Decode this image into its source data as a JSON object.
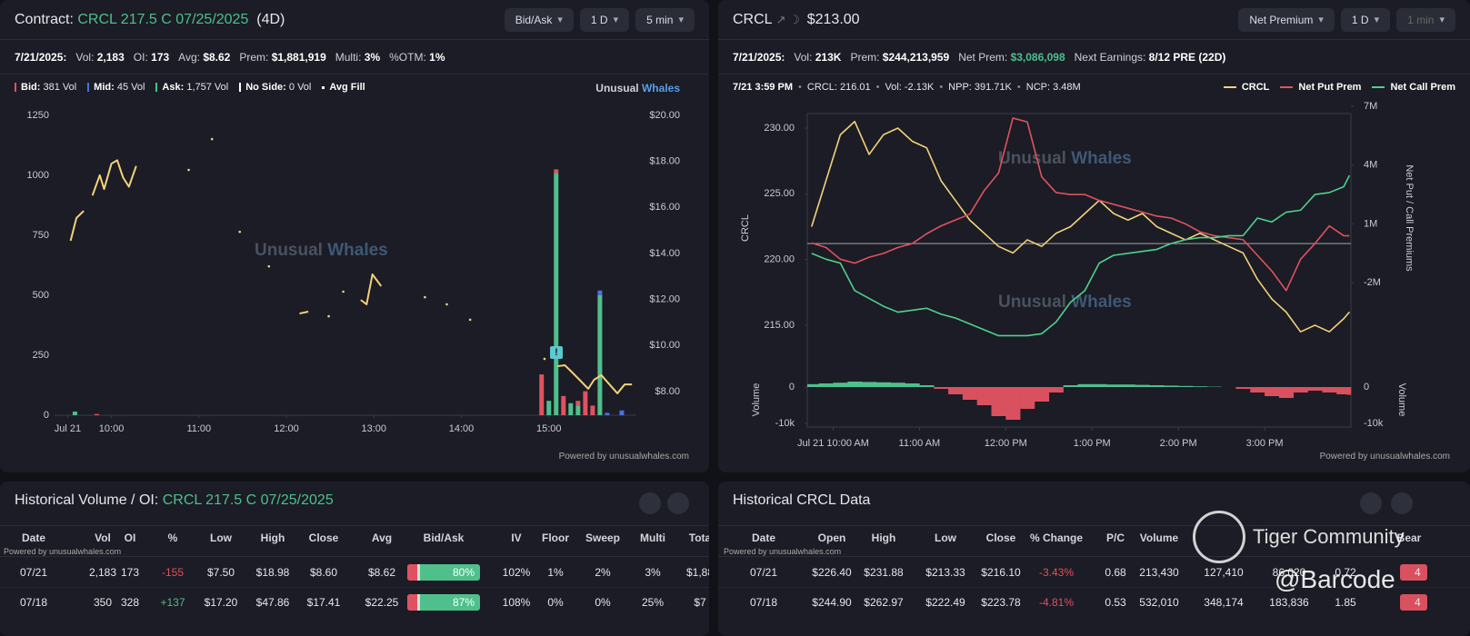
{
  "left": {
    "header": {
      "label": "Contract:",
      "contract": "CRCL 217.5 C 07/25/2025",
      "dte": "(4D)"
    },
    "controls": [
      "Bid/Ask",
      "1 D",
      "5 min"
    ],
    "stats": {
      "date": "7/21/2025:",
      "items": [
        {
          "label": "Vol:",
          "value": "2,183"
        },
        {
          "label": "OI:",
          "value": "173"
        },
        {
          "label": "Avg:",
          "value": "$8.62"
        },
        {
          "label": "Prem:",
          "value": "$1,881,919"
        },
        {
          "label": "Multi:",
          "value": "3%"
        },
        {
          "label": "%OTM:",
          "value": "1%"
        }
      ]
    },
    "legend": [
      {
        "label": "Bid:",
        "value": "381 Vol",
        "color": "#e0525f"
      },
      {
        "label": "Mid:",
        "value": "45 Vol",
        "color": "#4a6fe0"
      },
      {
        "label": "Ask:",
        "value": "1,757 Vol",
        "color": "#4fbf8c"
      },
      {
        "label": "No Side:",
        "value": "0 Vol",
        "color": "#ffffff"
      },
      {
        "label": "Avg Fill",
        "color": "#ffffff"
      }
    ],
    "brand": [
      "Unusual",
      "Whales"
    ],
    "watermark": [
      "Unusual",
      "Whales"
    ],
    "footer": "Powered by unusualwhales.com",
    "chart": {
      "type": "combo",
      "xlim": [
        561,
        960
      ],
      "xticks": [
        {
          "value": 570,
          "label": "Jul 21"
        },
        {
          "value": 600,
          "label": "10:00"
        },
        {
          "value": 660,
          "label": "11:00"
        },
        {
          "value": 720,
          "label": "12:00"
        },
        {
          "value": 780,
          "label": "13:00"
        },
        {
          "value": 840,
          "label": "14:00"
        },
        {
          "value": 900,
          "label": "15:00"
        }
      ],
      "ylim": [
        0,
        1250
      ],
      "yticks": [
        0,
        250,
        500,
        750,
        1000,
        1250
      ],
      "y2lim": [
        6.97,
        20
      ],
      "y2ticks": [
        {
          "value": 8,
          "label": "$8.00"
        },
        {
          "value": 10,
          "label": "$10.00"
        },
        {
          "value": 12,
          "label": "$12.00"
        },
        {
          "value": 14,
          "label": "$14.00"
        },
        {
          "value": 16,
          "label": "$16.00"
        },
        {
          "value": 18,
          "label": "$18.00"
        },
        {
          "value": 20,
          "label": "$20.00"
        }
      ],
      "bars": {
        "x": [
          575,
          590,
          895,
          900,
          905,
          910,
          915,
          920,
          925,
          930,
          935,
          940,
          950
        ],
        "series": [
          {
            "color": "#e0525f",
            "values": [
              0,
              5,
              170,
              0,
              15,
              80,
              0,
              20,
              100,
              40,
              0,
              0,
              0
            ]
          },
          {
            "color": "#4a6fe0",
            "values": [
              0,
              0,
              0,
              0,
              0,
              0,
              0,
              0,
              0,
              0,
              20,
              10,
              20
            ]
          },
          {
            "color": "#4fbf8c",
            "values": [
              15,
              0,
              0,
              60,
              1010,
              0,
              50,
              40,
              0,
              0,
              500,
              0,
              0
            ]
          }
        ]
      },
      "price": {
        "axis": "y2",
        "color": "#f3d27a",
        "x": [
          572,
          576,
          581,
          null,
          587,
          592,
          595,
          600,
          604,
          608,
          612,
          617,
          null,
          653,
          null,
          669,
          null,
          688,
          null,
          708,
          null,
          729,
          735,
          null,
          749,
          null,
          759,
          null,
          771,
          775,
          779,
          785,
          null,
          815,
          null,
          830,
          null,
          846,
          null,
          897,
          null,
          906,
          911,
          916,
          921,
          927,
          931,
          936,
          941,
          947,
          952,
          957
        ],
        "values": [
          14.55,
          15.54,
          15.85,
          null,
          16.52,
          17.4,
          16.8,
          17.9,
          18.05,
          17.3,
          16.9,
          17.8,
          null,
          17.63,
          null,
          18.97,
          null,
          14.94,
          null,
          13.44,
          null,
          11.39,
          11.47,
          null,
          11.27,
          null,
          12.34,
          null,
          11.98,
          11.79,
          13.09,
          12.58,
          null,
          12.1,
          null,
          11.79,
          null,
          11.12,
          null,
          9.42,
          null,
          9.1,
          9.14,
          8.83,
          8.51,
          8.12,
          8.51,
          8.71,
          8.35,
          7.92,
          8.31,
          8.31
        ]
      },
      "annotation": "!"
    }
  },
  "right": {
    "header": {
      "ticker": "CRCL",
      "price": "$213.00"
    },
    "controls": [
      "Net Premium",
      "1 D",
      "1 min"
    ],
    "stats": {
      "date": "7/21/2025:",
      "items": [
        {
          "label": "Vol:",
          "value": "213K"
        },
        {
          "label": "Prem:",
          "value": "$244,213,959"
        },
        {
          "label": "Net Prem:",
          "value": "$3,086,098",
          "color": "#4fbf8c"
        },
        {
          "label": "Next Earnings:",
          "value": "8/12 PRE (22D)"
        }
      ]
    },
    "hover": {
      "time": "7/21 3:59 PM",
      "items": [
        "CRCL: 216.01",
        "Vol: -2.13K",
        "NPP: 391.71K",
        "NCP: 3.48M"
      ]
    },
    "watermark": [
      "Unusual",
      "Whales"
    ],
    "footer": "Powered by unusualwhales.com",
    "chart": {
      "type": "line",
      "x": [
        585,
        595,
        605,
        615,
        625,
        635,
        645,
        655,
        665,
        675,
        685,
        695,
        705,
        715,
        725,
        735,
        745,
        755,
        765,
        775,
        785,
        795,
        805,
        815,
        825,
        835,
        845,
        855,
        865,
        875,
        885,
        895,
        905,
        915,
        925,
        935,
        945,
        955,
        959
      ],
      "xlim": [
        582,
        960
      ],
      "xticks": [
        {
          "value": 600,
          "label": "Jul 21 10:00 AM"
        },
        {
          "value": 660,
          "label": "11:00 AM"
        },
        {
          "value": 720,
          "label": "12:00 PM"
        },
        {
          "value": 780,
          "label": "1:00 PM"
        },
        {
          "value": 840,
          "label": "2:00 PM"
        },
        {
          "value": 900,
          "label": "3:00 PM"
        }
      ],
      "ylabel": "CRCL",
      "ylim": [
        213.13,
        231.66
      ],
      "yticks": [
        {
          "value": 215,
          "label": "215.00"
        },
        {
          "value": 220,
          "label": "220.00"
        },
        {
          "value": 225,
          "label": "225.00"
        },
        {
          "value": 230,
          "label": "230.00"
        }
      ],
      "y2label": "Net Put / Call Premiums",
      "y2lim": [
        -5420000,
        7000000
      ],
      "y2ticks": [
        {
          "value": 7000000,
          "label": "7M"
        },
        {
          "value": 4000000,
          "label": "4M"
        },
        {
          "value": 1000000,
          "label": "1M"
        },
        {
          "value": -2000000,
          "label": "-2M"
        }
      ],
      "series": [
        {
          "name": "CRCL",
          "color": "#f3d27a",
          "values": [
            222.5,
            226,
            229.5,
            230.5,
            228,
            229.5,
            230,
            229,
            228.5,
            226,
            224.5,
            223,
            222,
            221,
            220.5,
            221.5,
            221,
            222,
            222.5,
            223.5,
            224.5,
            223.5,
            223,
            223.5,
            222.5,
            222,
            221.5,
            222,
            221.5,
            221,
            220.5,
            218.5,
            217,
            216,
            214.5,
            215,
            214.5,
            215.5,
            216.01
          ]
        },
        {
          "name": "Net Put Prem",
          "color": "#e0525f",
          "axis": "y2",
          "values": [
            30000,
            -200000,
            -800000,
            -1000000,
            -700000,
            -500000,
            -200000,
            0,
            500000,
            900000,
            1200000,
            1500000,
            2700000,
            3600000,
            6400000,
            6200000,
            3400000,
            2600000,
            2500000,
            2500000,
            2200000,
            2000000,
            1800000,
            1600000,
            1400000,
            1300000,
            1000000,
            600000,
            400000,
            300000,
            200000,
            -600000,
            -1400000,
            -2400000,
            -800000,
            0,
            900000,
            400000,
            391710
          ]
        },
        {
          "name": "Net Call Prem",
          "color": "#4fd18b",
          "axis": "y2",
          "values": [
            -500000,
            -800000,
            -1000000,
            -2400000,
            -2800000,
            -3200000,
            -3500000,
            -3400000,
            -3300000,
            -3600000,
            -3800000,
            -4100000,
            -4400000,
            -4700000,
            -4700000,
            -4700000,
            -4600000,
            -4000000,
            -3000000,
            -2400000,
            -1000000,
            -600000,
            -500000,
            -400000,
            -300000,
            0,
            200000,
            300000,
            300000,
            400000,
            400000,
            1300000,
            1100000,
            1600000,
            1700000,
            2500000,
            2600000,
            2900000,
            3480000
          ]
        }
      ],
      "volume": {
        "label": "Volume",
        "ylim": [
          -11000,
          4000
        ],
        "yticks": [
          0,
          {
            "value": -10000,
            "label": "-10k"
          }
        ],
        "pos_color": "#4fbf8c",
        "neg_color": "#d9505e",
        "values": [
          800,
          1000,
          1200,
          1500,
          1400,
          1300,
          1200,
          1000,
          500,
          -500,
          -2000,
          -3500,
          -5000,
          -8000,
          -9000,
          -6000,
          -4000,
          -1500,
          500,
          800,
          800,
          700,
          700,
          600,
          500,
          400,
          300,
          200,
          100,
          0,
          -500,
          -1500,
          -2500,
          -3000,
          -1500,
          -1000,
          -1500,
          -2000,
          -2130
        ]
      }
    }
  },
  "left_table": {
    "title": "Historical Volume / OI:",
    "contract": "CRCL 217.5 C 07/25/2025",
    "powered": "Powered by unusualwhales.com",
    "headers": [
      "Date",
      "Vol",
      "OI",
      "%",
      "Low",
      "High",
      "Close",
      "Avg",
      "Bid/Ask",
      "IV",
      "Floor",
      "Sweep",
      "Multi",
      "Tota"
    ],
    "rows": [
      [
        "07/21",
        "2,183",
        "173",
        "-155",
        "$7.50",
        "$18.98",
        "$8.60",
        "$8.62",
        "80%",
        "102%",
        "1%",
        "2%",
        "3%",
        "$1,88"
      ],
      [
        "07/18",
        "350",
        "328",
        "+137",
        "$17.20",
        "$47.86",
        "$17.41",
        "$22.25",
        "87%",
        "108%",
        "0%",
        "0%",
        "25%",
        "$7"
      ]
    ]
  },
  "right_table": {
    "title": "Historical CRCL Data",
    "powered": "Powered by unusualwhales.com",
    "headers": [
      "Date",
      "Open",
      "High",
      "Low",
      "Close",
      "% Change",
      "P/C",
      "Volume",
      null,
      null,
      null,
      "Bear"
    ],
    "rows": [
      [
        "07/21",
        "$226.40",
        "$231.88",
        "$213.33",
        "$216.10",
        "-3.43%",
        "0.68",
        "213,430",
        "127,410",
        "86,020",
        "0.72",
        "4"
      ],
      [
        "07/18",
        "$244.90",
        "$262.97",
        "$222.49",
        "$223.78",
        "-4.81%",
        "0.53",
        "532,010",
        "348,174",
        "183,836",
        "1.85",
        "4"
      ]
    ]
  },
  "overlay": {
    "brand": "Tiger Community",
    "handle": "@Barcode"
  }
}
